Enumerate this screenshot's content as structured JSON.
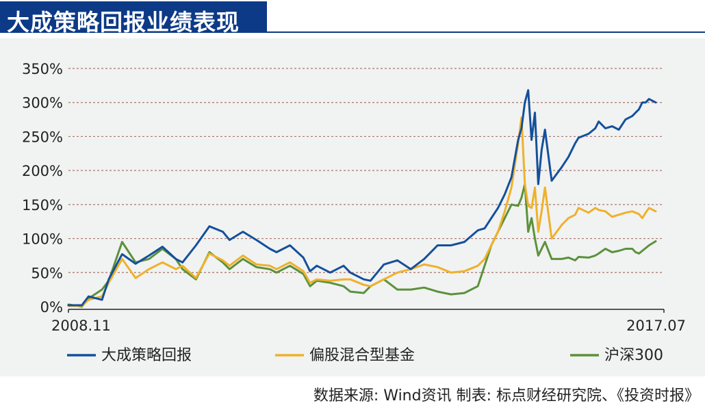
{
  "title": "大成策略回报业绩表现",
  "source_note": "数据来源: Wind资讯  制表: 标点财经研究院、《投资时报》",
  "chart_data": {
    "type": "line",
    "ylim": [
      0,
      350
    ],
    "yticks": [
      0,
      50,
      100,
      150,
      200,
      250,
      300,
      350
    ],
    "ytick_labels": [
      "0%",
      "50%",
      "100%",
      "150%",
      "200%",
      "250%",
      "300%",
      "350%"
    ],
    "x_start_label": "2008.11",
    "x_end_label": "2017.07",
    "grid": "horizontal dashed",
    "legend_position": "bottom",
    "series": [
      {
        "name": "大成策略回报",
        "color": "#13509b",
        "x": [
          0,
          0.2,
          0.3,
          0.5,
          0.6,
          0.8,
          1.0,
          1.2,
          1.4,
          1.6,
          1.7,
          1.9,
          2.1,
          2.3,
          2.4,
          2.6,
          2.8,
          3.0,
          3.1,
          3.3,
          3.5,
          3.6,
          3.7,
          3.9,
          4.1,
          4.2,
          4.4,
          4.5,
          4.7,
          4.9,
          5.1,
          5.3,
          5.5,
          5.7,
          5.9,
          6.1,
          6.2,
          6.3,
          6.4,
          6.5,
          6.6,
          6.7,
          6.75,
          6.8,
          6.85,
          6.9,
          6.95,
          7.0,
          7.05,
          7.1,
          7.2,
          7.35,
          7.45,
          7.55,
          7.6,
          7.75,
          7.85,
          7.9,
          8.0,
          8.1,
          8.2,
          8.3,
          8.4,
          8.45,
          8.5,
          8.55,
          8.6,
          8.65,
          8.75
        ],
        "values": [
          2,
          2,
          15,
          10,
          40,
          77,
          63,
          75,
          88,
          70,
          65,
          90,
          118,
          110,
          98,
          110,
          98,
          85,
          80,
          90,
          72,
          52,
          60,
          50,
          60,
          50,
          40,
          38,
          62,
          68,
          55,
          70,
          90,
          90,
          95,
          112,
          115,
          130,
          145,
          165,
          190,
          245,
          262,
          300,
          318,
          245,
          285,
          180,
          230,
          260,
          185,
          205,
          220,
          240,
          248,
          254,
          262,
          272,
          262,
          265,
          260,
          275,
          280,
          285,
          290,
          300,
          300,
          305,
          300
        ]
      },
      {
        "name": "偏股混合型基金",
        "color": "#efb12a",
        "x": [
          0,
          0.2,
          0.3,
          0.5,
          0.6,
          0.8,
          1.0,
          1.2,
          1.4,
          1.6,
          1.7,
          1.9,
          2.1,
          2.3,
          2.4,
          2.6,
          2.8,
          3.0,
          3.1,
          3.3,
          3.5,
          3.6,
          3.7,
          3.9,
          4.1,
          4.2,
          4.4,
          4.5,
          4.7,
          4.9,
          5.1,
          5.3,
          5.5,
          5.7,
          5.9,
          6.1,
          6.2,
          6.3,
          6.4,
          6.5,
          6.6,
          6.7,
          6.75,
          6.8,
          6.85,
          6.9,
          6.95,
          7.0,
          7.05,
          7.1,
          7.2,
          7.35,
          7.45,
          7.55,
          7.6,
          7.75,
          7.85,
          7.9,
          8.0,
          8.1,
          8.2,
          8.3,
          8.4,
          8.45,
          8.5,
          8.55,
          8.6,
          8.65,
          8.75
        ],
        "values": [
          1,
          1,
          10,
          15,
          35,
          70,
          42,
          55,
          65,
          55,
          60,
          42,
          78,
          68,
          60,
          75,
          62,
          60,
          55,
          65,
          52,
          35,
          40,
          38,
          40,
          40,
          32,
          30,
          40,
          50,
          55,
          62,
          58,
          50,
          52,
          60,
          70,
          90,
          110,
          140,
          175,
          240,
          278,
          180,
          148,
          145,
          175,
          110,
          140,
          175,
          100,
          120,
          130,
          135,
          145,
          138,
          145,
          142,
          140,
          132,
          135,
          138,
          140,
          138,
          136,
          130,
          138,
          145,
          140
        ]
      },
      {
        "name": "沪深300",
        "color": "#5b913b",
        "x": [
          0,
          0.2,
          0.3,
          0.5,
          0.6,
          0.8,
          1.0,
          1.2,
          1.4,
          1.6,
          1.7,
          1.9,
          2.1,
          2.3,
          2.4,
          2.6,
          2.8,
          3.0,
          3.1,
          3.3,
          3.5,
          3.6,
          3.7,
          3.9,
          4.1,
          4.2,
          4.4,
          4.5,
          4.7,
          4.9,
          5.1,
          5.3,
          5.5,
          5.7,
          5.9,
          6.1,
          6.2,
          6.3,
          6.4,
          6.5,
          6.6,
          6.7,
          6.75,
          6.8,
          6.85,
          6.9,
          6.95,
          7.0,
          7.05,
          7.1,
          7.2,
          7.35,
          7.45,
          7.55,
          7.6,
          7.75,
          7.85,
          7.9,
          8.0,
          8.1,
          8.2,
          8.3,
          8.4,
          8.45,
          8.5,
          8.55,
          8.6,
          8.65,
          8.75
        ],
        "values": [
          3,
          0,
          12,
          25,
          38,
          95,
          65,
          70,
          85,
          70,
          55,
          40,
          80,
          65,
          55,
          70,
          58,
          55,
          50,
          60,
          48,
          30,
          38,
          35,
          30,
          22,
          20,
          30,
          40,
          25,
          25,
          28,
          22,
          18,
          20,
          30,
          60,
          90,
          110,
          130,
          150,
          148,
          160,
          180,
          110,
          130,
          100,
          75,
          85,
          95,
          70,
          70,
          72,
          68,
          73,
          72,
          75,
          78,
          85,
          80,
          82,
          85,
          85,
          80,
          78,
          82,
          86,
          90,
          96
        ]
      }
    ]
  }
}
